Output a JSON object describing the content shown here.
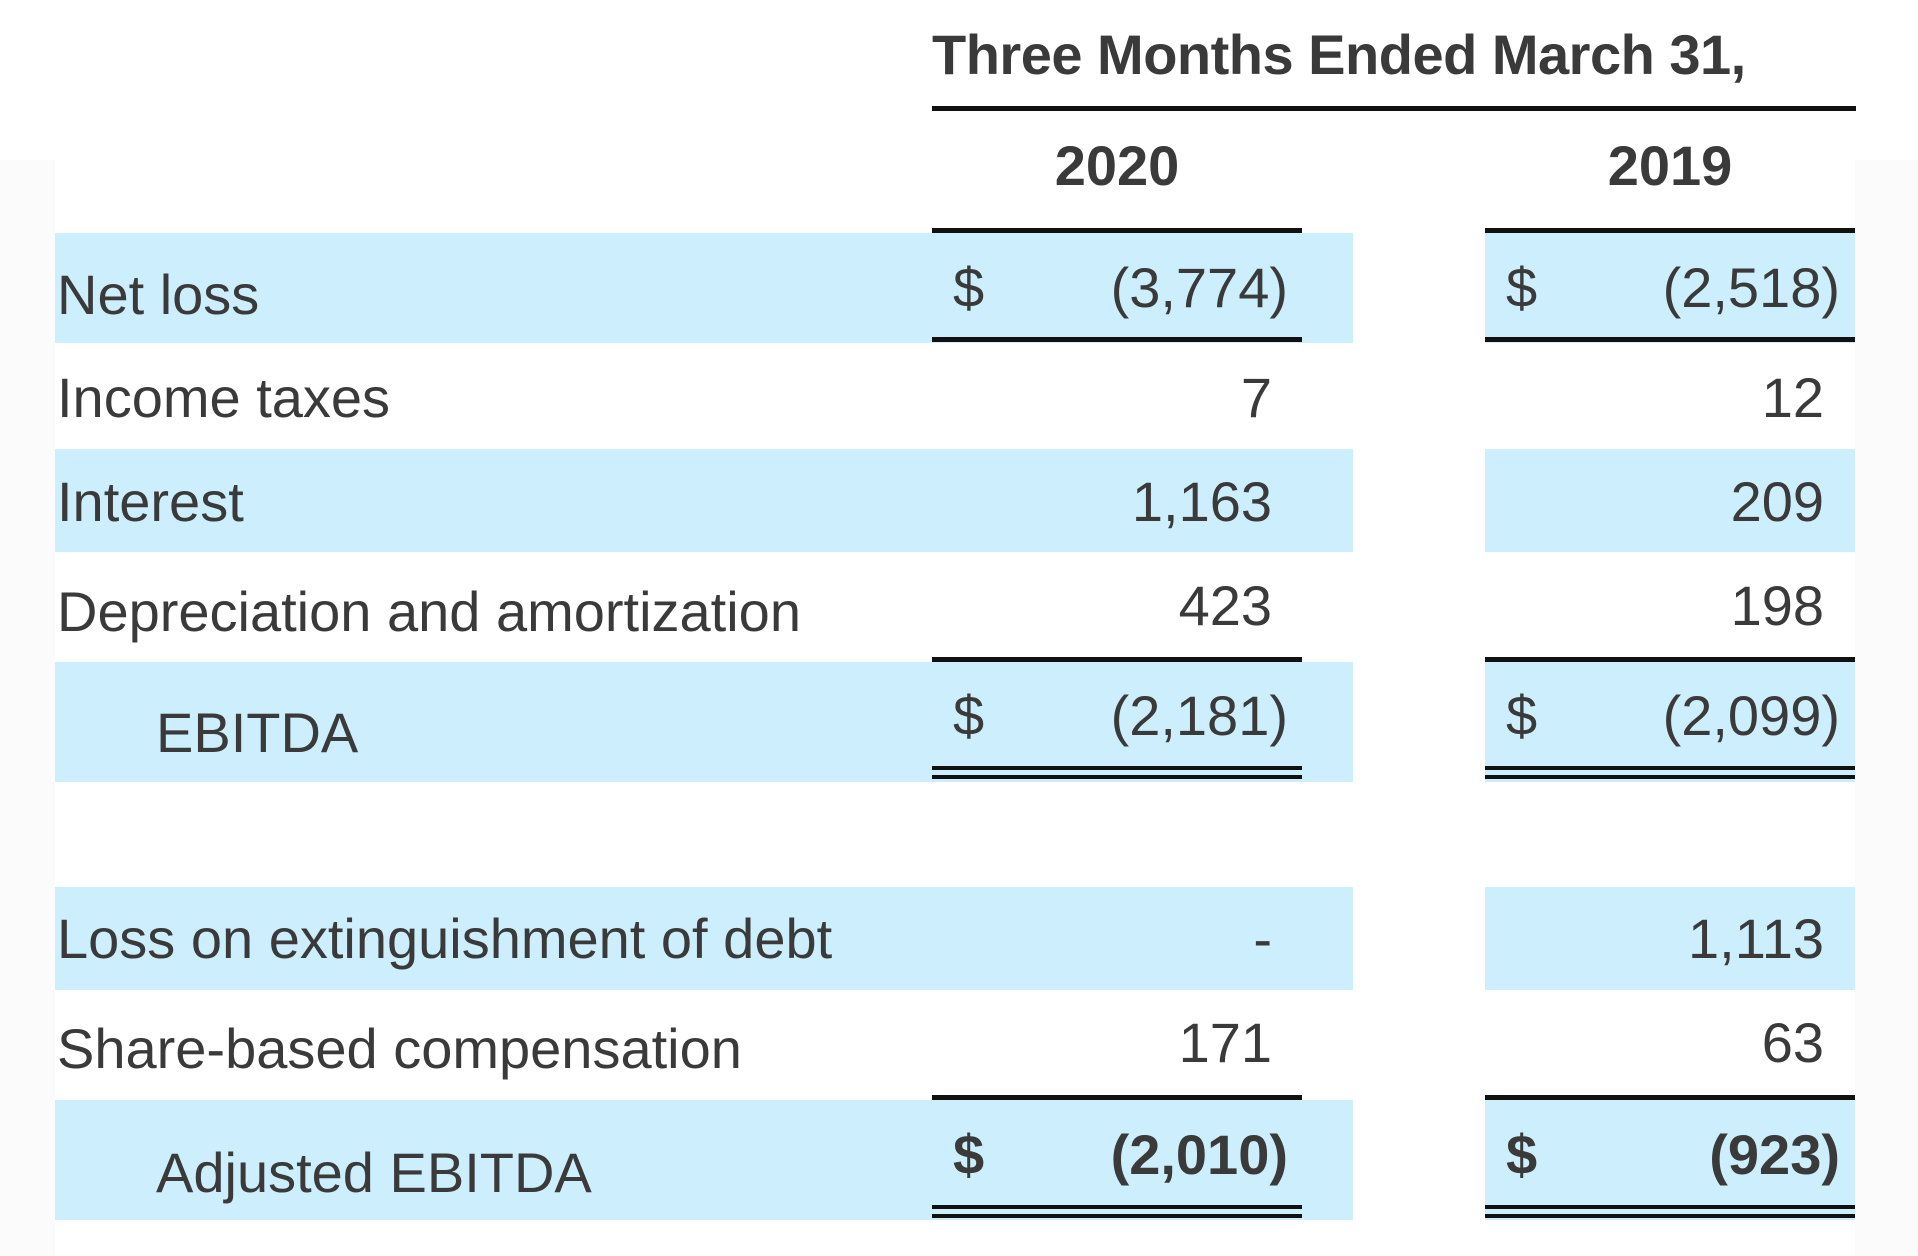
{
  "header": {
    "title": "Three Months Ended March 31,",
    "years": [
      "2020",
      "2019"
    ]
  },
  "rows": [
    {
      "label": "Net loss",
      "currency_2020": "$",
      "v2020": "(3,774)",
      "currency_2019": "$",
      "v2019": "(2,518)"
    },
    {
      "label": "Income taxes",
      "v2020": "7",
      "v2019": "12"
    },
    {
      "label": "Interest",
      "v2020": "1,163",
      "v2019": "209"
    },
    {
      "label": "Depreciation and amortization",
      "v2020": "423",
      "v2019": "198"
    },
    {
      "label": "EBITDA",
      "currency_2020": "$",
      "v2020": "(2,181)",
      "currency_2019": "$",
      "v2019": "(2,099)"
    },
    {
      "label": "Loss on extinguishment of debt",
      "v2020": "-",
      "v2019": "1,113"
    },
    {
      "label": "Share-based compensation",
      "v2020": "171",
      "v2019": "63"
    },
    {
      "label": "Adjusted EBITDA",
      "currency_2020": "$",
      "v2020": "(2,010)",
      "currency_2019": "$",
      "v2019": "(923)"
    }
  ],
  "colors": {
    "band": "#cdeefc",
    "text": "#3a3a3a",
    "rule": "#111111"
  }
}
